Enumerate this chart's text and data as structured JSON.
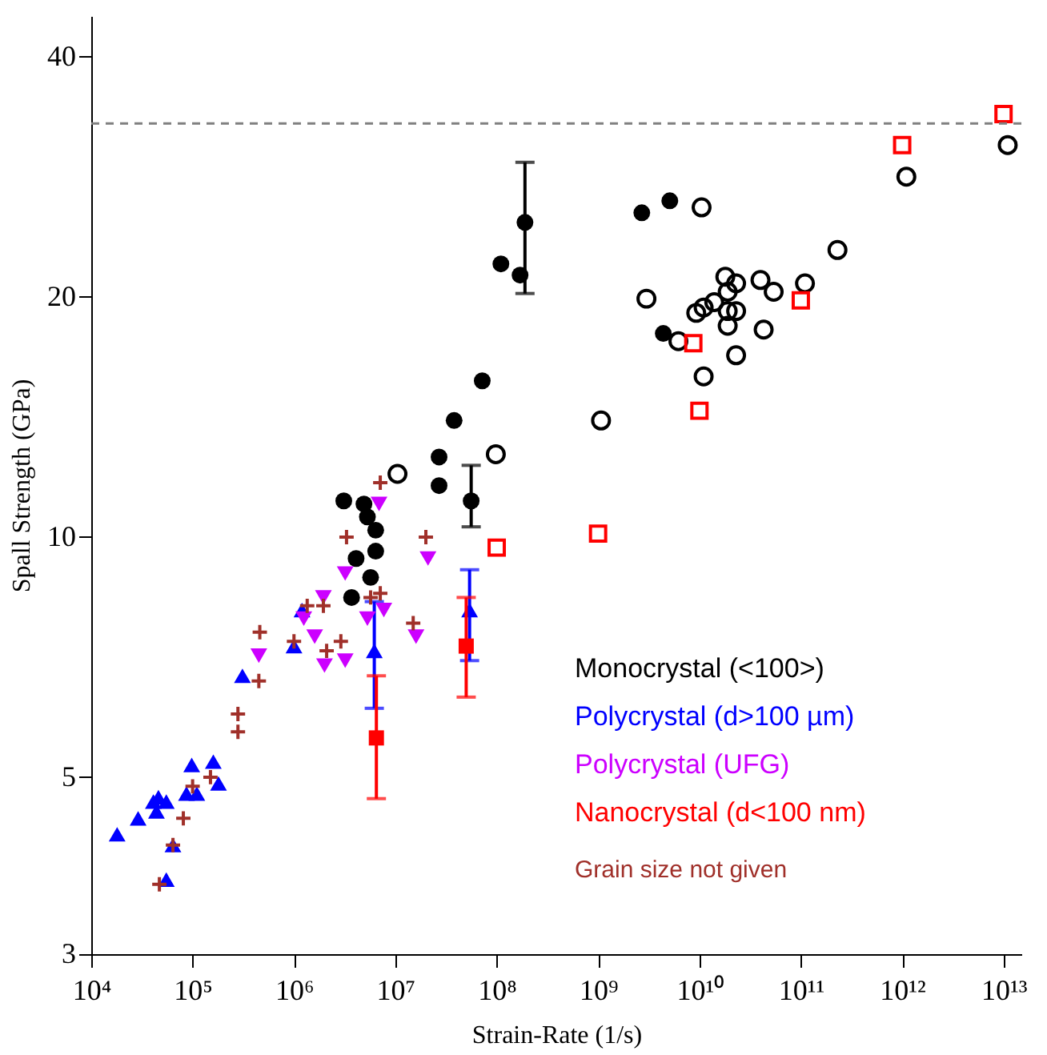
{
  "chart_data": {
    "type": "scatter",
    "xlabel": "Strain-Rate (1/s)",
    "ylabel": "Spall Strength (GPa)",
    "log": "xy",
    "grid": false,
    "legend": "bottom right",
    "xlim": [
      10000,
      15000000000000
    ],
    "ylim": [
      3,
      45
    ],
    "xticks": [
      {
        "value": 10000,
        "label": "10⁴"
      },
      {
        "value": 100000,
        "label": "10⁵"
      },
      {
        "value": 1000000,
        "label": "10⁶"
      },
      {
        "value": 10000000,
        "label": "10⁷"
      },
      {
        "value": 100000000,
        "label": "10⁸"
      },
      {
        "value": 1000000000,
        "label": "10⁹"
      },
      {
        "value": 10000000000,
        "label": "10¹⁰"
      },
      {
        "value": 100000000000,
        "label": "10¹¹"
      },
      {
        "value": 1000000000000,
        "label": "10¹²"
      },
      {
        "value": 10000000000000,
        "label": "10¹³"
      }
    ],
    "yticks": [
      3,
      5,
      10,
      20,
      40
    ],
    "ref_lines": [
      {
        "axis": "y",
        "value": 33,
        "color": "#808080",
        "line_style": "dashed"
      }
    ],
    "series": [
      {
        "name": "Monocrystal (<100>)",
        "color": "#000000",
        "marker": "circle",
        "x": [
          3100000,
          4900000,
          5300000,
          6400000,
          6400000,
          4100000,
          5700000,
          3700000,
          27000000,
          27000000,
          56000000,
          38000000,
          72000000,
          190000000,
          110000000,
          170000000,
          2700000000,
          5100000000,
          4400000000
        ],
        "values": [
          11.1,
          11.0,
          10.6,
          10.2,
          9.6,
          9.4,
          8.9,
          8.4,
          12.6,
          11.6,
          11.1,
          14.0,
          15.7,
          24.8,
          22.0,
          21.3,
          25.5,
          26.4,
          18.0
        ],
        "errors": [
          null,
          null,
          null,
          null,
          null,
          null,
          null,
          null,
          null,
          null,
          [
            10.3,
            12.3
          ],
          null,
          null,
          [
            20.2,
            29.5
          ],
          null,
          null,
          null,
          null,
          null
        ]
      },
      {
        "name": "Polycrystal (d>100 µm)",
        "color": "#0000ff",
        "marker": "triangle",
        "x": [
          18000,
          29000,
          41000,
          46000,
          44000,
          55000,
          64000,
          55000,
          98000,
          87000,
          110000,
          160000,
          180000,
          310000,
          1000000,
          1200000,
          6200000,
          54000000
        ],
        "values": [
          4.24,
          4.44,
          4.66,
          4.72,
          4.53,
          4.66,
          4.11,
          3.72,
          5.18,
          4.77,
          4.77,
          5.23,
          4.91,
          6.7,
          7.3,
          8.1,
          7.2,
          8.1
        ],
        "errors": [
          null,
          null,
          null,
          null,
          null,
          null,
          null,
          null,
          null,
          null,
          null,
          null,
          null,
          null,
          null,
          null,
          [
            6.1,
            8.3
          ],
          [
            7.0,
            9.1
          ]
        ]
      },
      {
        "name": "Polycrystal (UFG)",
        "color": "#cc00ff",
        "marker": "triangle-down",
        "x": [
          6900000,
          21000000,
          3200000,
          1950000,
          1250000,
          1600000,
          2000000,
          3200000,
          5300000,
          7700000,
          16000000,
          450000
        ],
        "values": [
          11.0,
          9.4,
          9.0,
          8.4,
          7.9,
          7.5,
          6.9,
          7.0,
          7.9,
          8.1,
          7.5,
          7.1
        ]
      },
      {
        "name": "Nanocrystal (d<100 nm)",
        "color": "#ff0000",
        "marker": "square",
        "x": [
          6500000,
          50000000
        ],
        "values": [
          5.6,
          7.3
        ],
        "errors": [
          [
            4.7,
            6.7
          ],
          [
            6.3,
            8.4
          ]
        ]
      },
      {
        "name": "Grain size not given",
        "color": "#a0302a",
        "marker": "cross",
        "x": [
          47000,
          64000,
          81000,
          100000,
          150000,
          280000,
          280000,
          450000,
          460000,
          1000000,
          1350000,
          1950000,
          2900000,
          2100000,
          3300000,
          7100000,
          5700000,
          7100000,
          20000000,
          15000000
        ],
        "values": [
          3.67,
          4.11,
          4.44,
          4.87,
          5.0,
          5.7,
          6.0,
          6.6,
          7.6,
          7.4,
          8.2,
          8.2,
          7.4,
          7.2,
          10.0,
          11.7,
          8.4,
          8.5,
          10.0,
          7.8
        ]
      },
      {
        "color": "#000000",
        "marker": "circle",
        "x": [
          10500000,
          98000000,
          1070000000,
          3000000000,
          10500000000,
          6200000000,
          11000000000,
          23000000000,
          19000000000,
          43000000000,
          9300000000,
          11000000000,
          14000000000,
          19000000000,
          23000000000,
          19000000000,
          23000000000,
          18000000000,
          40000000000,
          54000000000,
          110000000000,
          230000000000,
          1100000000000,
          11000000000000
        ],
        "values": [
          12.0,
          12.7,
          14.0,
          19.9,
          25.9,
          17.6,
          15.9,
          16.9,
          18.4,
          18.2,
          19.1,
          19.4,
          19.7,
          19.2,
          19.2,
          20.3,
          20.8,
          21.2,
          21.0,
          20.3,
          20.8,
          22.9,
          28.3,
          31.0
        ]
      },
      {
        "color": "#ff0000",
        "marker": "square",
        "x": [
          10000000000000,
          1000000000000,
          100000000000,
          8700000000,
          10000000000,
          1000000000,
          100000000
        ],
        "values": [
          33.9,
          31.0,
          19.8,
          17.5,
          14.4,
          10.1,
          9.7
        ]
      }
    ]
  }
}
